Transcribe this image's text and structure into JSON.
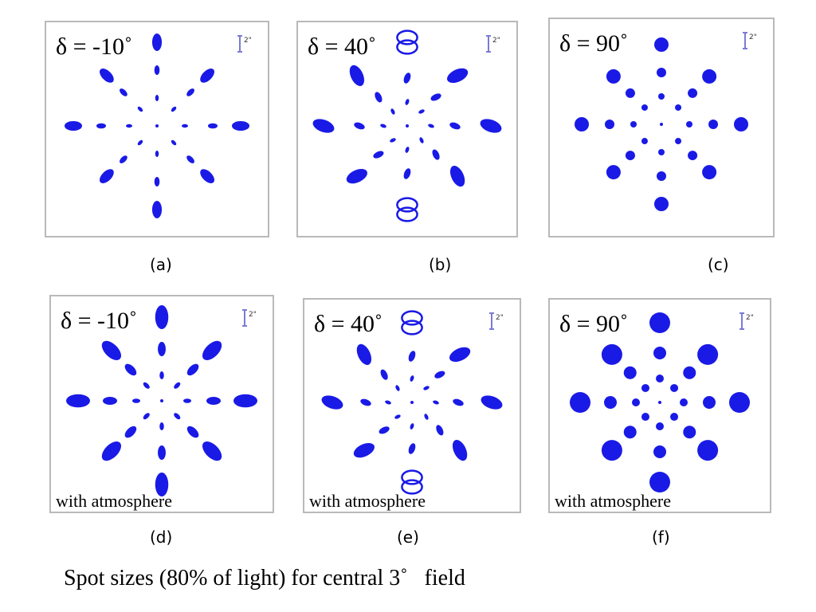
{
  "panels": [
    {
      "id": "a",
      "label": "(a)",
      "delta": "δ = -10˚",
      "scale": "2\"",
      "atmosphere": ""
    },
    {
      "id": "b",
      "label": "(b)",
      "delta": "δ = 40˚",
      "scale": "2\"",
      "atmosphere": ""
    },
    {
      "id": "c",
      "label": "(c)",
      "delta": "δ = 90˚",
      "scale": "2\"",
      "atmosphere": ""
    },
    {
      "id": "d",
      "label": "(d)",
      "delta": "δ = -10˚",
      "scale": "2\"",
      "atmosphere": "with atmosphere"
    },
    {
      "id": "e",
      "label": "(e)",
      "delta": "δ = 40˚",
      "scale": "2\"",
      "atmosphere": "with atmosphere"
    },
    {
      "id": "f",
      "label": "(f)",
      "delta": "δ = 90˚",
      "scale": "2\"",
      "atmosphere": "with atmosphere"
    }
  ],
  "caption": "Spot sizes (80% of light) for central 3˚   field",
  "colors": {
    "spot": "#1a1ae6",
    "border": "#b9b9b9",
    "scale_bar": "#7b7bd6"
  }
}
